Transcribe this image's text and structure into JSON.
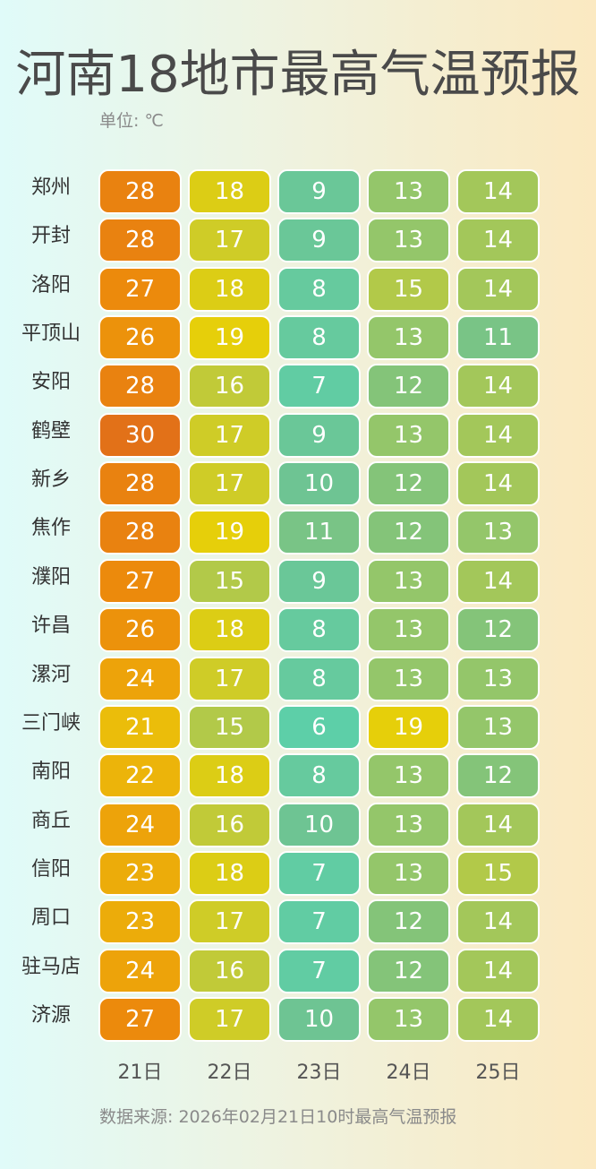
{
  "title": "河南18地市最高气温预报",
  "unit_label": "单位: ℃",
  "source": "数据来源: 2026年02月21日10时最高气温预报",
  "chart_data": {
    "type": "heatmap",
    "title": "河南18地市最高气温预报",
    "unit": "℃",
    "columns": [
      "21日",
      "22日",
      "23日",
      "24日",
      "25日"
    ],
    "rows": [
      "郑州",
      "开封",
      "洛阳",
      "平顶山",
      "安阳",
      "鹤壁",
      "新乡",
      "焦作",
      "濮阳",
      "许昌",
      "漯河",
      "三门峡",
      "南阳",
      "商丘",
      "信阳",
      "周口",
      "驻马店",
      "济源"
    ],
    "values": [
      [
        28,
        18,
        9,
        13,
        14
      ],
      [
        28,
        17,
        9,
        13,
        14
      ],
      [
        27,
        18,
        8,
        15,
        14
      ],
      [
        26,
        19,
        8,
        13,
        11
      ],
      [
        28,
        16,
        7,
        12,
        14
      ],
      [
        30,
        17,
        9,
        13,
        14
      ],
      [
        28,
        17,
        10,
        12,
        14
      ],
      [
        28,
        19,
        11,
        12,
        13
      ],
      [
        27,
        15,
        9,
        13,
        14
      ],
      [
        26,
        18,
        8,
        13,
        12
      ],
      [
        24,
        17,
        8,
        13,
        13
      ],
      [
        21,
        15,
        6,
        19,
        13
      ],
      [
        22,
        18,
        8,
        13,
        12
      ],
      [
        24,
        16,
        10,
        13,
        14
      ],
      [
        23,
        18,
        7,
        13,
        15
      ],
      [
        23,
        17,
        7,
        12,
        14
      ],
      [
        24,
        16,
        7,
        12,
        14
      ],
      [
        27,
        17,
        10,
        13,
        14
      ]
    ],
    "color_scale": [
      {
        "value": 6,
        "color": "#5dcfa8"
      },
      {
        "value": 10,
        "color": "#6ec493"
      },
      {
        "value": 12,
        "color": "#84c479"
      },
      {
        "value": 14,
        "color": "#a3c75a"
      },
      {
        "value": 16,
        "color": "#c1ca38"
      },
      {
        "value": 18,
        "color": "#dccd15"
      },
      {
        "value": 19,
        "color": "#e6cf0a"
      },
      {
        "value": 21,
        "color": "#ebbd0a"
      },
      {
        "value": 24,
        "color": "#eda30a"
      },
      {
        "value": 27,
        "color": "#ec8a0c"
      },
      {
        "value": 30,
        "color": "#e27118"
      }
    ]
  }
}
